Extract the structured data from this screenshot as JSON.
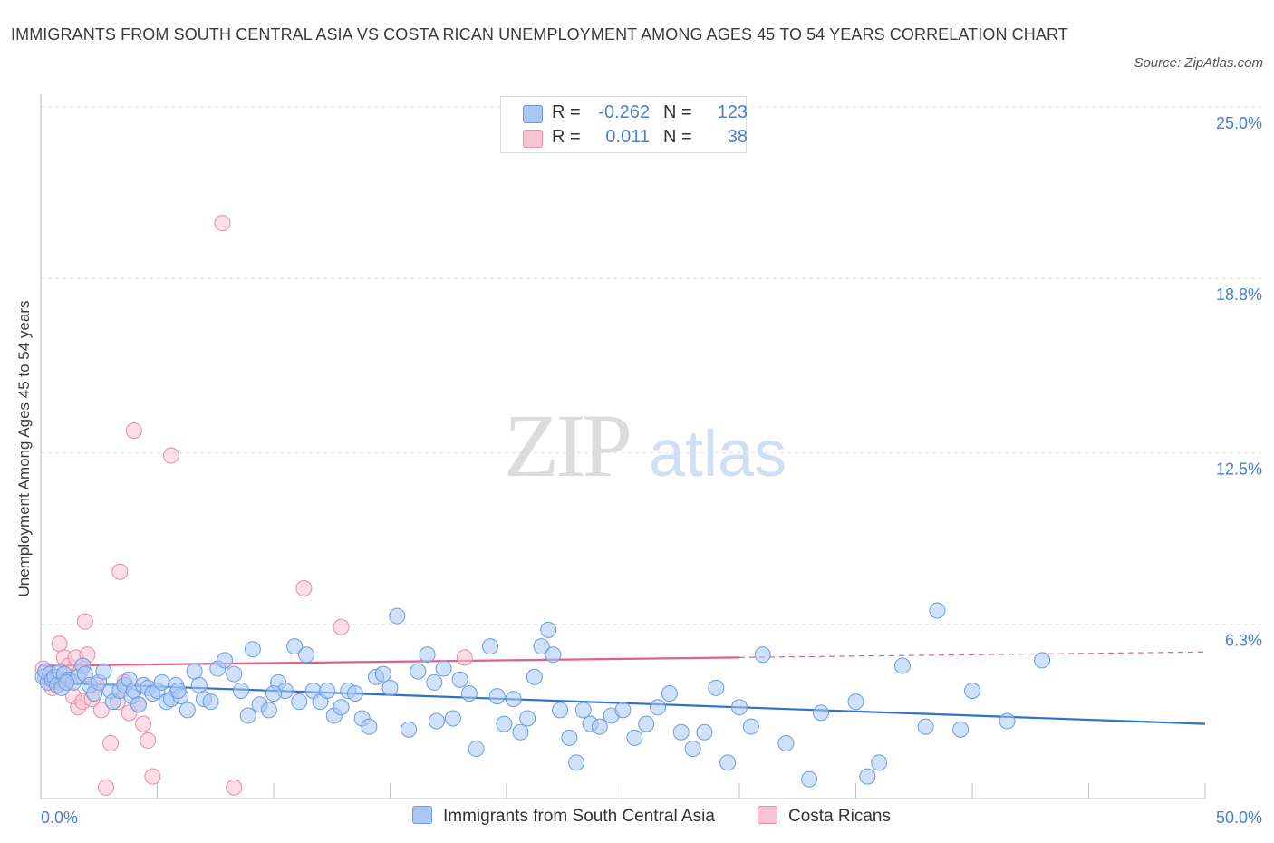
{
  "title": "IMMIGRANTS FROM SOUTH CENTRAL ASIA VS COSTA RICAN UNEMPLOYMENT AMONG AGES 45 TO 54 YEARS CORRELATION CHART",
  "source": "Source: ZipAtlas.com",
  "watermark": {
    "zip": "ZIP",
    "atlas": "atlas"
  },
  "legend": {
    "rows": [
      {
        "r_label": "R =",
        "r_value": "-0.262",
        "n_label": "N =",
        "n_value": "123",
        "color": "#a9c8f5",
        "border": "#6b9be0"
      },
      {
        "r_label": "R =",
        "r_value": "0.011",
        "n_label": "N =",
        "n_value": "38",
        "color": "#f9c3d3",
        "border": "#e88aa8"
      }
    ]
  },
  "bottom_legend": {
    "blue_label": "Immigrants from South Central Asia",
    "pink_label": "Costa Ricans"
  },
  "colors": {
    "blue_fill": "#a9c8f5",
    "blue_stroke": "#6b9be0",
    "blue_line": "#2f72c8",
    "pink_fill": "#f9c3d3",
    "pink_stroke": "#e88aa8",
    "pink_line": "#e0608a",
    "axis_text": "#4a7fcf",
    "grid": "#e2e2e2"
  },
  "chart_data": {
    "type": "scatter",
    "xlabel": "",
    "ylabel": "Unemployment Among Ages 45 to 54 years",
    "xlim": [
      0,
      50
    ],
    "ylim": [
      0,
      25
    ],
    "x_tick_labels": [
      "0.0%",
      "50.0%"
    ],
    "y_ticks": [
      {
        "value": 25.0,
        "label": "25.0%"
      },
      {
        "value": 18.8,
        "label": "18.8%"
      },
      {
        "value": 12.5,
        "label": "12.5%"
      },
      {
        "value": 6.3,
        "label": "6.3%"
      }
    ],
    "grid": "horizontal dashed",
    "legend_position": "top-center",
    "series": [
      {
        "name": "Immigrants from South Central Asia",
        "R": -0.262,
        "N": 123,
        "trend": {
          "x0": 0,
          "y0": 4.2,
          "x1": 50,
          "y1": 2.7
        },
        "points": [
          [
            0.1,
            4.4
          ],
          [
            0.2,
            4.6
          ],
          [
            0.3,
            4.2
          ],
          [
            0.4,
            4.5
          ],
          [
            0.5,
            4.3
          ],
          [
            0.6,
            4.4
          ],
          [
            0.7,
            4.1
          ],
          [
            0.8,
            4.6
          ],
          [
            0.9,
            4.0
          ],
          [
            1.0,
            4.5
          ],
          [
            1.2,
            4.3
          ],
          [
            1.4,
            4.2
          ],
          [
            1.6,
            4.4
          ],
          [
            1.8,
            4.8
          ],
          [
            1.9,
            4.5
          ],
          [
            2.1,
            4.1
          ],
          [
            2.3,
            3.8
          ],
          [
            2.5,
            4.2
          ],
          [
            3.0,
            3.9
          ],
          [
            3.1,
            3.5
          ],
          [
            3.4,
            3.9
          ],
          [
            3.6,
            4.1
          ],
          [
            3.8,
            4.3
          ],
          [
            3.9,
            3.7
          ],
          [
            4.0,
            3.9
          ],
          [
            4.2,
            3.4
          ],
          [
            4.4,
            4.1
          ],
          [
            4.6,
            4.0
          ],
          [
            4.8,
            3.8
          ],
          [
            5.0,
            3.9
          ],
          [
            5.2,
            4.2
          ],
          [
            5.4,
            3.5
          ],
          [
            5.6,
            3.6
          ],
          [
            5.8,
            4.1
          ],
          [
            6.0,
            3.7
          ],
          [
            6.3,
            3.2
          ],
          [
            6.6,
            4.6
          ],
          [
            6.8,
            4.1
          ],
          [
            7.0,
            3.6
          ],
          [
            7.3,
            3.5
          ],
          [
            7.6,
            4.7
          ],
          [
            7.9,
            5.0
          ],
          [
            8.3,
            4.5
          ],
          [
            8.6,
            3.9
          ],
          [
            8.9,
            3.0
          ],
          [
            9.1,
            5.4
          ],
          [
            9.4,
            3.4
          ],
          [
            9.8,
            3.2
          ],
          [
            10.2,
            4.2
          ],
          [
            10.5,
            3.9
          ],
          [
            10.9,
            5.5
          ],
          [
            11.1,
            3.5
          ],
          [
            11.4,
            5.2
          ],
          [
            11.7,
            3.9
          ],
          [
            12.0,
            3.5
          ],
          [
            12.3,
            3.9
          ],
          [
            12.6,
            3.0
          ],
          [
            12.9,
            3.3
          ],
          [
            13.2,
            3.9
          ],
          [
            13.5,
            3.8
          ],
          [
            13.8,
            2.9
          ],
          [
            14.1,
            2.6
          ],
          [
            14.4,
            4.4
          ],
          [
            14.7,
            4.5
          ],
          [
            15.0,
            4.0
          ],
          [
            15.3,
            6.6
          ],
          [
            15.8,
            2.5
          ],
          [
            16.2,
            4.6
          ],
          [
            16.6,
            5.2
          ],
          [
            17.0,
            2.8
          ],
          [
            17.3,
            4.7
          ],
          [
            17.7,
            2.9
          ],
          [
            18.0,
            4.3
          ],
          [
            18.4,
            3.8
          ],
          [
            18.7,
            1.8
          ],
          [
            19.3,
            5.5
          ],
          [
            19.6,
            3.7
          ],
          [
            19.9,
            2.7
          ],
          [
            20.3,
            3.6
          ],
          [
            20.6,
            2.4
          ],
          [
            20.9,
            2.9
          ],
          [
            21.2,
            4.4
          ],
          [
            21.5,
            5.5
          ],
          [
            21.8,
            6.1
          ],
          [
            22.0,
            5.2
          ],
          [
            22.3,
            3.2
          ],
          [
            22.7,
            2.2
          ],
          [
            23.0,
            1.3
          ],
          [
            23.3,
            3.2
          ],
          [
            23.6,
            2.7
          ],
          [
            24.0,
            2.6
          ],
          [
            24.5,
            3.0
          ],
          [
            25.0,
            3.2
          ],
          [
            25.5,
            2.2
          ],
          [
            26.0,
            2.7
          ],
          [
            26.5,
            3.3
          ],
          [
            27.0,
            3.8
          ],
          [
            27.5,
            2.4
          ],
          [
            28.0,
            1.8
          ],
          [
            28.5,
            2.4
          ],
          [
            29.0,
            4.0
          ],
          [
            29.5,
            1.3
          ],
          [
            30.0,
            3.3
          ],
          [
            30.5,
            2.6
          ],
          [
            31.0,
            5.2
          ],
          [
            32.0,
            2.0
          ],
          [
            33.0,
            0.7
          ],
          [
            33.5,
            3.1
          ],
          [
            35.0,
            3.5
          ],
          [
            35.5,
            0.8
          ],
          [
            36.0,
            1.3
          ],
          [
            37.0,
            4.8
          ],
          [
            38.0,
            2.6
          ],
          [
            38.5,
            6.8
          ],
          [
            39.5,
            2.5
          ],
          [
            40.0,
            3.9
          ],
          [
            41.5,
            2.8
          ],
          [
            43.0,
            5.0
          ],
          [
            1.1,
            4.2
          ],
          [
            2.7,
            4.6
          ],
          [
            5.9,
            3.9
          ],
          [
            10.0,
            3.8
          ],
          [
            16.9,
            4.2
          ]
        ]
      },
      {
        "name": "Costa Ricans",
        "R": 0.011,
        "N": 38,
        "trend": {
          "x0": 0,
          "y0": 4.8,
          "x1": 30,
          "y1": 5.1,
          "dash_x1": 50,
          "dash_y1": 5.3
        },
        "points": [
          [
            0.1,
            4.7
          ],
          [
            0.2,
            4.4
          ],
          [
            0.3,
            4.2
          ],
          [
            0.4,
            4.5
          ],
          [
            0.5,
            4.0
          ],
          [
            0.6,
            4.3
          ],
          [
            0.7,
            4.1
          ],
          [
            0.8,
            5.6
          ],
          [
            0.9,
            4.2
          ],
          [
            1.0,
            5.1
          ],
          [
            1.2,
            4.8
          ],
          [
            1.4,
            3.7
          ],
          [
            1.5,
            5.1
          ],
          [
            1.6,
            3.3
          ],
          [
            1.7,
            4.6
          ],
          [
            1.8,
            3.5
          ],
          [
            1.9,
            6.4
          ],
          [
            2.0,
            5.2
          ],
          [
            2.2,
            3.6
          ],
          [
            2.4,
            4.1
          ],
          [
            2.6,
            3.2
          ],
          [
            2.8,
            0.4
          ],
          [
            3.0,
            2.0
          ],
          [
            3.3,
            3.5
          ],
          [
            3.4,
            8.2
          ],
          [
            3.6,
            4.2
          ],
          [
            3.8,
            3.1
          ],
          [
            4.0,
            13.3
          ],
          [
            4.2,
            3.4
          ],
          [
            4.4,
            2.7
          ],
          [
            4.6,
            2.1
          ],
          [
            4.8,
            0.8
          ],
          [
            5.6,
            12.4
          ],
          [
            7.8,
            20.8
          ],
          [
            8.3,
            0.4
          ],
          [
            11.3,
            7.6
          ],
          [
            12.9,
            6.2
          ],
          [
            18.2,
            5.1
          ]
        ]
      }
    ]
  }
}
